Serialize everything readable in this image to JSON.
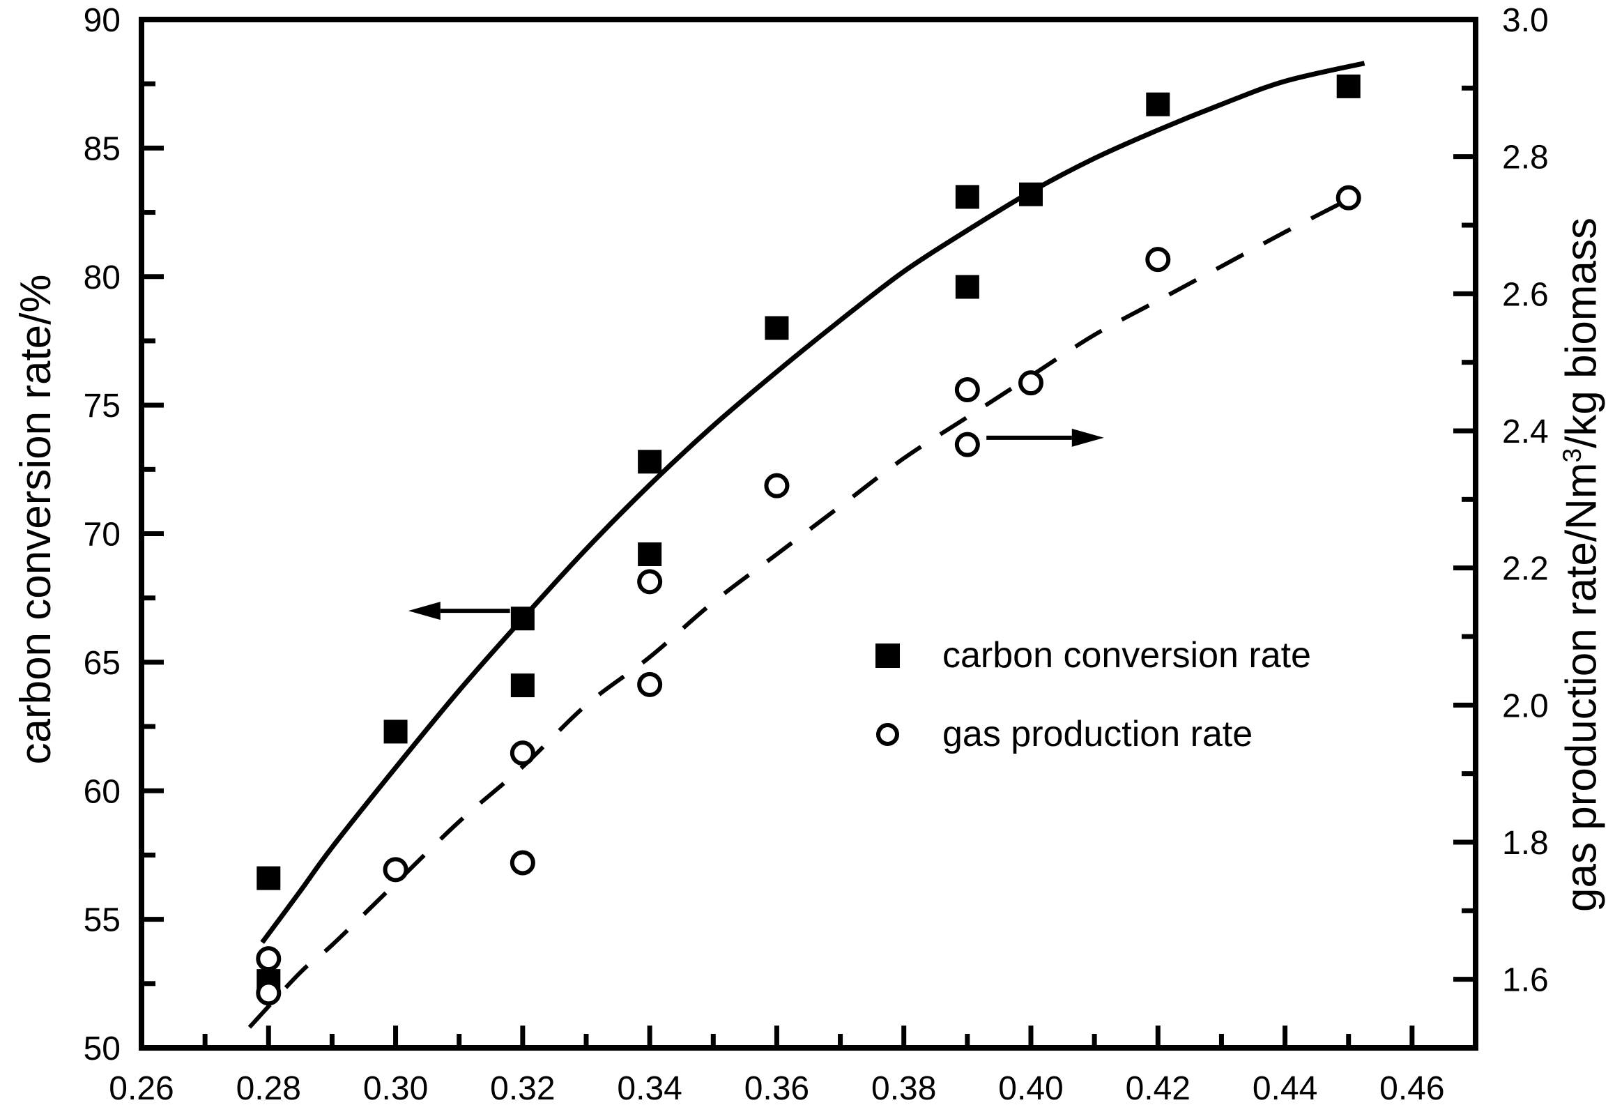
{
  "figure": {
    "background": "#ffffff",
    "ink_color": "#000000"
  },
  "chart_data": {
    "type": "scatter",
    "title": "",
    "grid": "off",
    "x_axis": {
      "label": "",
      "min": 0.26,
      "max": 0.47,
      "major_tick_values": [
        0.28,
        0.3,
        0.32,
        0.34,
        0.36,
        0.38,
        0.4,
        0.42,
        0.44,
        0.46
      ],
      "minor_tick_values": [
        0.27,
        0.29,
        0.31,
        0.33,
        0.35,
        0.37,
        0.39,
        0.41,
        0.43,
        0.45
      ],
      "tick_labels": [
        {
          "v": 0.26,
          "t": "0.26"
        },
        {
          "v": 0.28,
          "t": "0.28"
        },
        {
          "v": 0.3,
          "t": "0.30"
        },
        {
          "v": 0.32,
          "t": "0.32"
        },
        {
          "v": 0.34,
          "t": "0.34"
        },
        {
          "v": 0.36,
          "t": "0.36"
        },
        {
          "v": 0.38,
          "t": "0.38"
        },
        {
          "v": 0.4,
          "t": "0.40"
        },
        {
          "v": 0.42,
          "t": "0.42"
        },
        {
          "v": 0.44,
          "t": "0.44"
        },
        {
          "v": 0.46,
          "t": "0.46"
        }
      ]
    },
    "left_axis": {
      "label": "carbon conversion rate/%",
      "min": 50,
      "max": 90,
      "major_tick_values": [
        55,
        60,
        65,
        70,
        75,
        80,
        85
      ],
      "minor_tick_values": [
        52.5,
        57.5,
        62.5,
        67.5,
        72.5,
        77.5,
        82.5,
        87.5
      ],
      "tick_labels": [
        {
          "v": 50,
          "t": "50"
        },
        {
          "v": 55,
          "t": "55"
        },
        {
          "v": 60,
          "t": "60"
        },
        {
          "v": 65,
          "t": "65"
        },
        {
          "v": 70,
          "t": "70"
        },
        {
          "v": 75,
          "t": "75"
        },
        {
          "v": 80,
          "t": "80"
        },
        {
          "v": 85,
          "t": "85"
        },
        {
          "v": 90,
          "t": "90"
        }
      ]
    },
    "right_axis": {
      "label_parts": [
        "gas production rate/Nm",
        "3",
        "/kg biomass"
      ],
      "min": 1.5,
      "max": 3.0,
      "major_tick_values": [
        1.6,
        1.8,
        2.0,
        2.2,
        2.4,
        2.6,
        2.8
      ],
      "minor_tick_values": [
        1.7,
        1.9,
        2.1,
        2.3,
        2.5,
        2.7,
        2.9
      ],
      "tick_labels": [
        {
          "v": 1.6,
          "t": "1.6"
        },
        {
          "v": 1.8,
          "t": "1.8"
        },
        {
          "v": 2.0,
          "t": "2.0"
        },
        {
          "v": 2.2,
          "t": "2.2"
        },
        {
          "v": 2.4,
          "t": "2.4"
        },
        {
          "v": 2.6,
          "t": "2.6"
        },
        {
          "v": 2.8,
          "t": "2.8"
        },
        {
          "v": 3.0,
          "t": "3.0"
        }
      ]
    },
    "series": [
      {
        "name": "carbon conversion rate",
        "axis": "left",
        "marker": "filled-square",
        "points": [
          [
            0.28,
            56.6
          ],
          [
            0.28,
            52.6
          ],
          [
            0.3,
            62.3
          ],
          [
            0.32,
            66.7
          ],
          [
            0.32,
            64.1
          ],
          [
            0.34,
            72.8
          ],
          [
            0.34,
            69.2
          ],
          [
            0.36,
            78.0
          ],
          [
            0.39,
            83.1
          ],
          [
            0.39,
            79.6
          ],
          [
            0.4,
            83.2
          ],
          [
            0.42,
            86.7
          ],
          [
            0.45,
            87.4
          ]
        ],
        "trend": {
          "style": "solid",
          "points": [
            [
              0.279,
              54.1
            ],
            [
              0.285,
              56.1
            ],
            [
              0.29,
              57.8
            ],
            [
              0.3,
              60.9
            ],
            [
              0.31,
              63.9
            ],
            [
              0.32,
              66.7
            ],
            [
              0.33,
              69.4
            ],
            [
              0.34,
              71.9
            ],
            [
              0.35,
              74.2
            ],
            [
              0.36,
              76.3
            ],
            [
              0.37,
              78.3
            ],
            [
              0.38,
              80.2
            ],
            [
              0.39,
              81.8
            ],
            [
              0.4,
              83.3
            ],
            [
              0.41,
              84.6
            ],
            [
              0.42,
              85.7
            ],
            [
              0.43,
              86.7
            ],
            [
              0.44,
              87.6
            ],
            [
              0.4525,
              88.3
            ]
          ]
        }
      },
      {
        "name": "gas production rate",
        "axis": "right",
        "marker": "open-circle",
        "points": [
          [
            0.28,
            1.63
          ],
          [
            0.28,
            1.58
          ],
          [
            0.3,
            1.76
          ],
          [
            0.32,
            1.93
          ],
          [
            0.32,
            1.77
          ],
          [
            0.34,
            2.18
          ],
          [
            0.34,
            2.03
          ],
          [
            0.36,
            2.32
          ],
          [
            0.39,
            2.46
          ],
          [
            0.39,
            2.38
          ],
          [
            0.4,
            2.47
          ],
          [
            0.42,
            2.65
          ],
          [
            0.45,
            2.74
          ]
        ],
        "trend": {
          "style": "dashed",
          "points": [
            [
              0.277,
              1.53
            ],
            [
              0.285,
              1.61
            ],
            [
              0.29,
              1.65
            ],
            [
              0.3,
              1.74
            ],
            [
              0.31,
              1.83
            ],
            [
              0.32,
              1.91
            ],
            [
              0.33,
              2.0
            ],
            [
              0.34,
              2.07
            ],
            [
              0.35,
              2.15
            ],
            [
              0.36,
              2.22
            ],
            [
              0.37,
              2.29
            ],
            [
              0.38,
              2.36
            ],
            [
              0.39,
              2.42
            ],
            [
              0.4,
              2.48
            ],
            [
              0.41,
              2.54
            ],
            [
              0.42,
              2.59
            ],
            [
              0.43,
              2.64
            ],
            [
              0.44,
              2.69
            ],
            [
              0.4505,
              2.74
            ]
          ]
        }
      }
    ],
    "annotations": [
      {
        "type": "arrow",
        "axis": "left",
        "from": [
          0.318,
          67.0
        ],
        "to": [
          0.302,
          67.0
        ]
      },
      {
        "type": "arrow",
        "axis": "right",
        "from": [
          0.393,
          2.39
        ],
        "to": [
          0.4115,
          2.39
        ]
      }
    ]
  },
  "legend": {
    "items": [
      {
        "marker": "filled-square",
        "label": "carbon conversion rate"
      },
      {
        "marker": "open-circle",
        "label": "gas production rate"
      }
    ]
  }
}
